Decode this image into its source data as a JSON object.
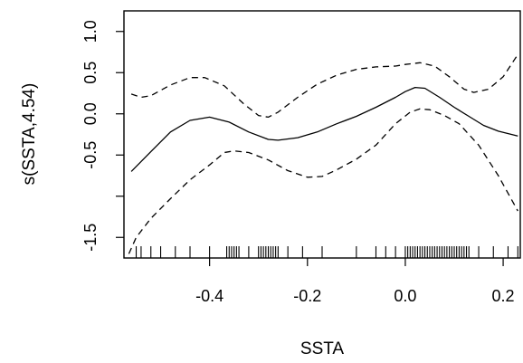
{
  "chart_data": {
    "type": "line",
    "xlabel": "SSTA",
    "ylabel": "s(SSTA,4.54)",
    "xlim": [
      -0.575,
      0.235
    ],
    "ylim": [
      -1.75,
      1.25
    ],
    "x_ticks": [
      {
        "value": -0.4,
        "label": "-0.4"
      },
      {
        "value": -0.2,
        "label": "-0.2"
      },
      {
        "value": 0.0,
        "label": "0.0"
      },
      {
        "value": 0.2,
        "label": "0.2"
      }
    ],
    "y_ticks": [
      {
        "value": -1.5,
        "label": "-1.5"
      },
      {
        "value": -1.0,
        "label": ""
      },
      {
        "value": -0.5,
        "label": "-0.5"
      },
      {
        "value": 0.0,
        "label": "0.0"
      },
      {
        "value": 0.5,
        "label": "0.5"
      },
      {
        "value": 1.0,
        "label": "1.0"
      }
    ],
    "series": [
      {
        "role": "estimate",
        "style": "solid",
        "points": [
          [
            -0.56,
            -0.7
          ],
          [
            -0.52,
            -0.46
          ],
          [
            -0.48,
            -0.22
          ],
          [
            -0.44,
            -0.08
          ],
          [
            -0.4,
            -0.04
          ],
          [
            -0.36,
            -0.1
          ],
          [
            -0.32,
            -0.22
          ],
          [
            -0.28,
            -0.31
          ],
          [
            -0.26,
            -0.32
          ],
          [
            -0.22,
            -0.29
          ],
          [
            -0.18,
            -0.22
          ],
          [
            -0.14,
            -0.12
          ],
          [
            -0.1,
            -0.03
          ],
          [
            -0.06,
            0.08
          ],
          [
            -0.02,
            0.2
          ],
          [
            0.0,
            0.27
          ],
          [
            0.02,
            0.32
          ],
          [
            0.04,
            0.31
          ],
          [
            0.07,
            0.2
          ],
          [
            0.1,
            0.08
          ],
          [
            0.13,
            -0.03
          ],
          [
            0.16,
            -0.14
          ],
          [
            0.19,
            -0.21
          ],
          [
            0.23,
            -0.27
          ]
        ]
      },
      {
        "role": "upper band",
        "style": "dashed",
        "points": [
          [
            -0.56,
            0.24
          ],
          [
            -0.54,
            0.2
          ],
          [
            -0.52,
            0.22
          ],
          [
            -0.48,
            0.35
          ],
          [
            -0.44,
            0.44
          ],
          [
            -0.41,
            0.44
          ],
          [
            -0.37,
            0.34
          ],
          [
            -0.33,
            0.12
          ],
          [
            -0.3,
            -0.02
          ],
          [
            -0.28,
            -0.04
          ],
          [
            -0.26,
            0.02
          ],
          [
            -0.22,
            0.2
          ],
          [
            -0.18,
            0.36
          ],
          [
            -0.14,
            0.47
          ],
          [
            -0.1,
            0.54
          ],
          [
            -0.06,
            0.57
          ],
          [
            -0.02,
            0.58
          ],
          [
            0.0,
            0.6
          ],
          [
            0.03,
            0.62
          ],
          [
            0.06,
            0.58
          ],
          [
            0.09,
            0.45
          ],
          [
            0.12,
            0.3
          ],
          [
            0.14,
            0.26
          ],
          [
            0.17,
            0.3
          ],
          [
            0.2,
            0.45
          ],
          [
            0.23,
            0.72
          ]
        ]
      },
      {
        "role": "lower band",
        "style": "dashed",
        "points": [
          [
            -0.565,
            -1.7
          ],
          [
            -0.55,
            -1.5
          ],
          [
            -0.52,
            -1.27
          ],
          [
            -0.48,
            -1.03
          ],
          [
            -0.44,
            -0.8
          ],
          [
            -0.4,
            -0.62
          ],
          [
            -0.37,
            -0.47
          ],
          [
            -0.35,
            -0.45
          ],
          [
            -0.32,
            -0.47
          ],
          [
            -0.28,
            -0.56
          ],
          [
            -0.24,
            -0.69
          ],
          [
            -0.2,
            -0.77
          ],
          [
            -0.17,
            -0.76
          ],
          [
            -0.14,
            -0.68
          ],
          [
            -0.1,
            -0.55
          ],
          [
            -0.06,
            -0.38
          ],
          [
            -0.02,
            -0.12
          ],
          [
            0.01,
            0.02
          ],
          [
            0.03,
            0.06
          ],
          [
            0.05,
            0.05
          ],
          [
            0.08,
            -0.02
          ],
          [
            0.11,
            -0.12
          ],
          [
            0.15,
            -0.38
          ],
          [
            0.19,
            -0.75
          ],
          [
            0.23,
            -1.18
          ]
        ]
      }
    ],
    "rug": [
      -0.55,
      -0.54,
      -0.52,
      -0.5,
      -0.47,
      -0.44,
      -0.4,
      -0.365,
      -0.36,
      -0.355,
      -0.35,
      -0.345,
      -0.34,
      -0.32,
      -0.3,
      -0.295,
      -0.29,
      -0.285,
      -0.28,
      -0.275,
      -0.27,
      -0.265,
      -0.26,
      -0.24,
      -0.21,
      -0.17,
      -0.1,
      -0.06,
      -0.04,
      -0.02,
      0.0,
      0.005,
      0.01,
      0.015,
      0.02,
      0.025,
      0.03,
      0.035,
      0.04,
      0.045,
      0.05,
      0.055,
      0.06,
      0.065,
      0.07,
      0.075,
      0.08,
      0.085,
      0.09,
      0.095,
      0.1,
      0.105,
      0.11,
      0.115,
      0.12,
      0.125,
      0.13,
      0.15,
      0.18,
      0.21,
      0.23
    ],
    "grid": false,
    "colors": {
      "line": "#000000",
      "axis": "#000000",
      "background": "#ffffff"
    }
  }
}
